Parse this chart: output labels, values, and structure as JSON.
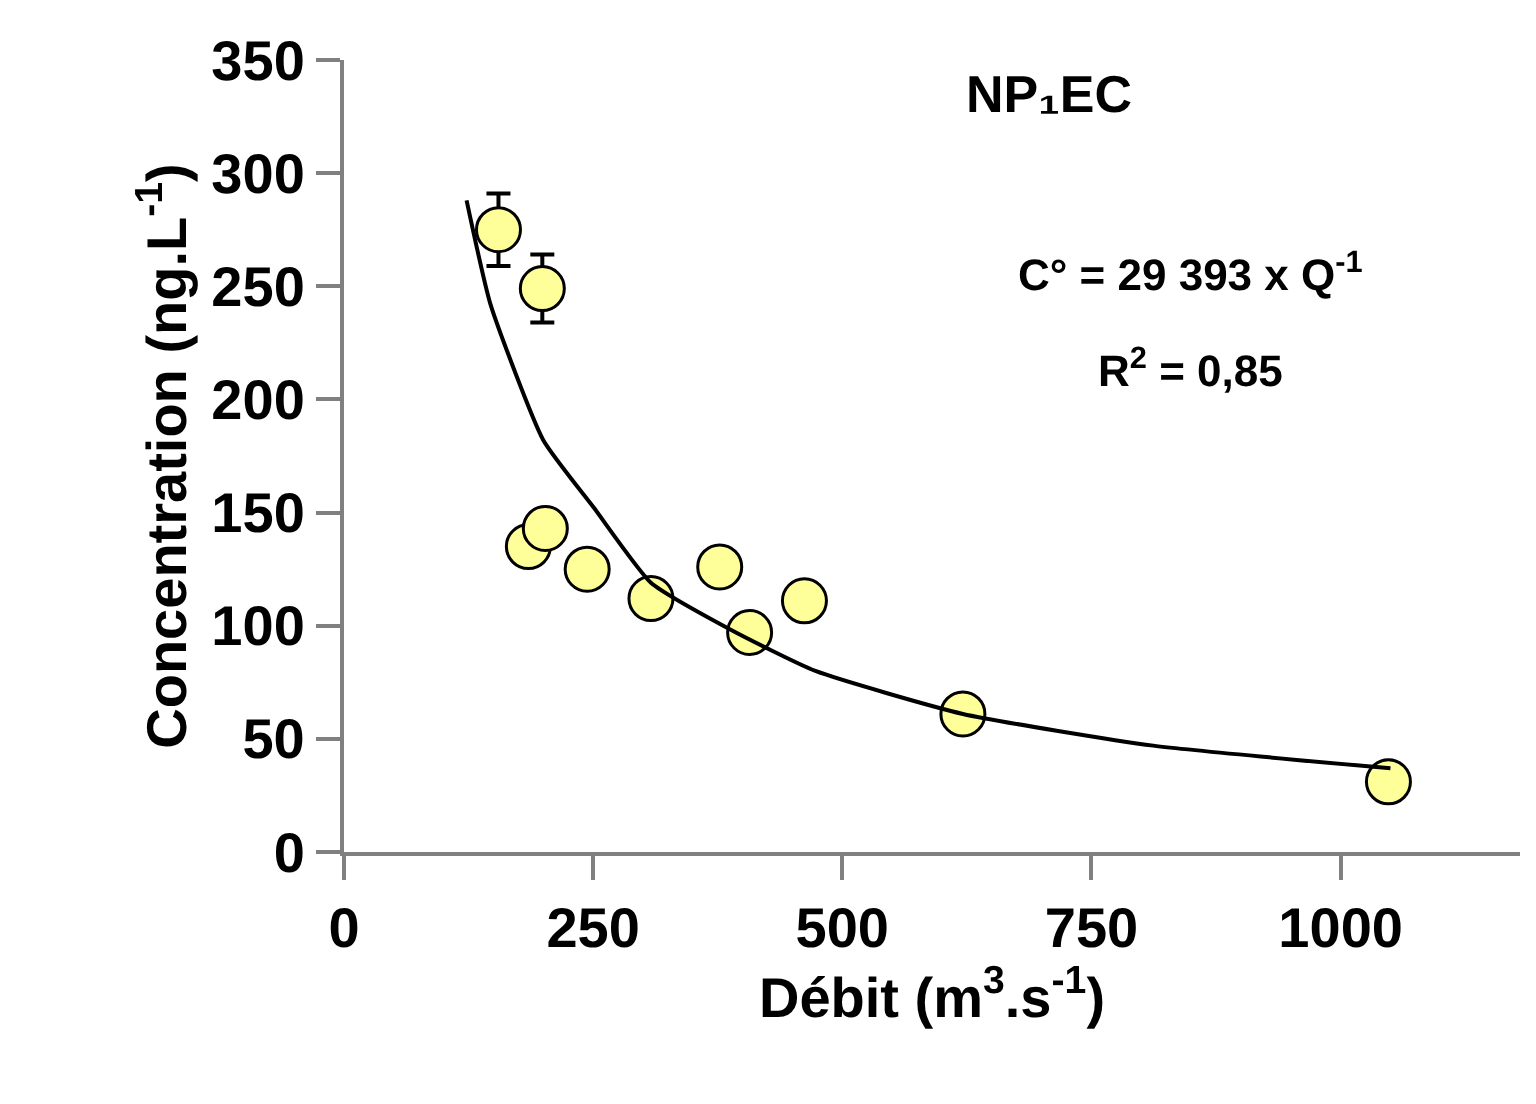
{
  "chart_data": {
    "type": "scatter",
    "title": "NP₁EC",
    "xlabel": "Débit (m$^{3}$.s$^{-1}$)",
    "ylabel": "Concentration (ng.L$^{-1}$)",
    "annotations": [
      "C° = 29 393 x Q$^{-1}$",
      "R$^{2}$ = 0,85"
    ],
    "series": [
      {
        "color": "#ffff99",
        "marker": "circle",
        "x": [
          155,
          199,
          185,
          202,
          244,
          308,
          377,
          407,
          462,
          621,
          1048
        ],
        "values": [
          275,
          249,
          135,
          143,
          125,
          112,
          126,
          97,
          111,
          61,
          31
        ],
        "errors": [
          16,
          15,
          null,
          null,
          null,
          null,
          null,
          null,
          null,
          null,
          null
        ]
      },
      {
        "type": "line",
        "color": "#000000",
        "line_style": "solid",
        "marker": "none",
        "x": [
          123,
          147,
          200,
          251,
          308,
          389,
          473,
          621,
          812,
          1050
        ],
        "values": [
          288,
          242,
          182,
          152,
          119,
          98,
          80,
          61,
          47,
          37
        ]
      }
    ],
    "xlim": [
      0,
      1180
    ],
    "xticks": [
      0,
      250,
      500,
      750,
      1000
    ],
    "ylim": [
      0,
      350
    ],
    "yticks": [
      0,
      50,
      100,
      150,
      200,
      250,
      300,
      350
    ],
    "legend": false
  }
}
